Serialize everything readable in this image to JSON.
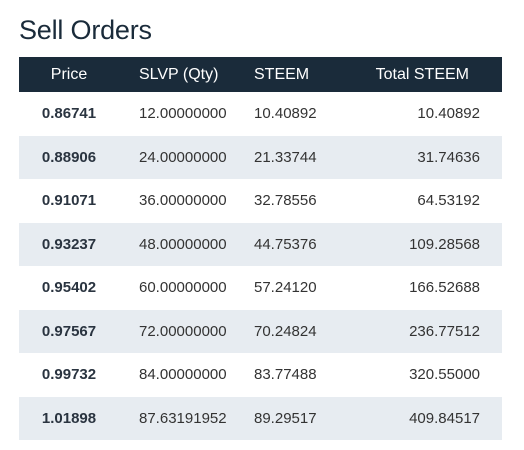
{
  "title": "Sell Orders",
  "columns": {
    "price": "Price",
    "qty": "SLVP (Qty)",
    "steem": "STEEM",
    "total": "Total STEEM"
  },
  "rows": [
    {
      "price": "0.86741",
      "qty": "12.00000000",
      "steem": "10.40892",
      "total": "10.40892"
    },
    {
      "price": "0.88906",
      "qty": "24.00000000",
      "steem": "21.33744",
      "total": "31.74636"
    },
    {
      "price": "0.91071",
      "qty": "36.00000000",
      "steem": "32.78556",
      "total": "64.53192"
    },
    {
      "price": "0.93237",
      "qty": "48.00000000",
      "steem": "44.75376",
      "total": "109.28568"
    },
    {
      "price": "0.95402",
      "qty": "60.00000000",
      "steem": "57.24120",
      "total": "166.52688"
    },
    {
      "price": "0.97567",
      "qty": "72.00000000",
      "steem": "70.24824",
      "total": "236.77512"
    },
    {
      "price": "0.99732",
      "qty": "84.00000000",
      "steem": "83.77488",
      "total": "320.55000"
    },
    {
      "price": "1.01898",
      "qty": "87.63191952",
      "steem": "89.29517",
      "total": "409.84517"
    }
  ],
  "colors": {
    "header_bg": "#1a2b3a",
    "stripe_bg": "#e7ecf1",
    "title": "#1a2b3a"
  }
}
